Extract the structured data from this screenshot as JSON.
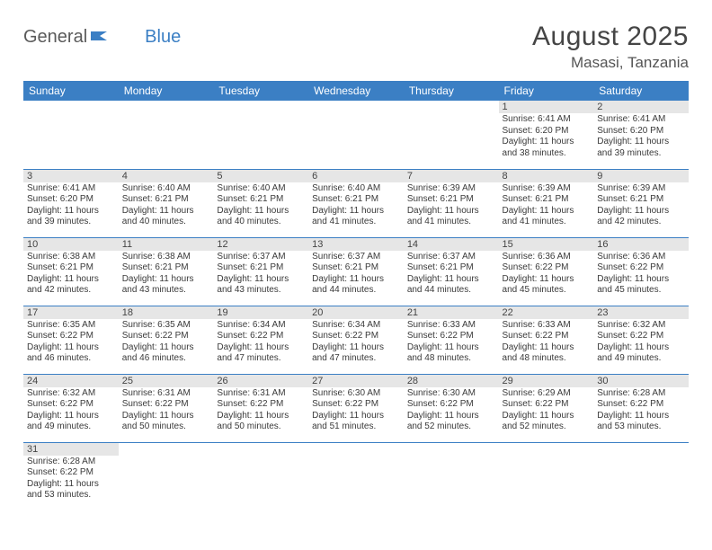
{
  "brand": {
    "general": "General",
    "blue": "Blue"
  },
  "header": {
    "month": "August 2025",
    "location": "Masasi, Tanzania"
  },
  "columns": [
    "Sunday",
    "Monday",
    "Tuesday",
    "Wednesday",
    "Thursday",
    "Friday",
    "Saturday"
  ],
  "colors": {
    "header_bg": "#3b7fc4",
    "header_text": "#ffffff",
    "daynum_bg": "#e6e6e6",
    "row_border": "#3b7fc4",
    "body_text": "#333333"
  },
  "weeks": [
    [
      {
        "day": "",
        "sunrise": "",
        "sunset": "",
        "daylight": ""
      },
      {
        "day": "",
        "sunrise": "",
        "sunset": "",
        "daylight": ""
      },
      {
        "day": "",
        "sunrise": "",
        "sunset": "",
        "daylight": ""
      },
      {
        "day": "",
        "sunrise": "",
        "sunset": "",
        "daylight": ""
      },
      {
        "day": "",
        "sunrise": "",
        "sunset": "",
        "daylight": ""
      },
      {
        "day": "1",
        "sunrise": "Sunrise: 6:41 AM",
        "sunset": "Sunset: 6:20 PM",
        "daylight": "Daylight: 11 hours and 38 minutes."
      },
      {
        "day": "2",
        "sunrise": "Sunrise: 6:41 AM",
        "sunset": "Sunset: 6:20 PM",
        "daylight": "Daylight: 11 hours and 39 minutes."
      }
    ],
    [
      {
        "day": "3",
        "sunrise": "Sunrise: 6:41 AM",
        "sunset": "Sunset: 6:20 PM",
        "daylight": "Daylight: 11 hours and 39 minutes."
      },
      {
        "day": "4",
        "sunrise": "Sunrise: 6:40 AM",
        "sunset": "Sunset: 6:21 PM",
        "daylight": "Daylight: 11 hours and 40 minutes."
      },
      {
        "day": "5",
        "sunrise": "Sunrise: 6:40 AM",
        "sunset": "Sunset: 6:21 PM",
        "daylight": "Daylight: 11 hours and 40 minutes."
      },
      {
        "day": "6",
        "sunrise": "Sunrise: 6:40 AM",
        "sunset": "Sunset: 6:21 PM",
        "daylight": "Daylight: 11 hours and 41 minutes."
      },
      {
        "day": "7",
        "sunrise": "Sunrise: 6:39 AM",
        "sunset": "Sunset: 6:21 PM",
        "daylight": "Daylight: 11 hours and 41 minutes."
      },
      {
        "day": "8",
        "sunrise": "Sunrise: 6:39 AM",
        "sunset": "Sunset: 6:21 PM",
        "daylight": "Daylight: 11 hours and 41 minutes."
      },
      {
        "day": "9",
        "sunrise": "Sunrise: 6:39 AM",
        "sunset": "Sunset: 6:21 PM",
        "daylight": "Daylight: 11 hours and 42 minutes."
      }
    ],
    [
      {
        "day": "10",
        "sunrise": "Sunrise: 6:38 AM",
        "sunset": "Sunset: 6:21 PM",
        "daylight": "Daylight: 11 hours and 42 minutes."
      },
      {
        "day": "11",
        "sunrise": "Sunrise: 6:38 AM",
        "sunset": "Sunset: 6:21 PM",
        "daylight": "Daylight: 11 hours and 43 minutes."
      },
      {
        "day": "12",
        "sunrise": "Sunrise: 6:37 AM",
        "sunset": "Sunset: 6:21 PM",
        "daylight": "Daylight: 11 hours and 43 minutes."
      },
      {
        "day": "13",
        "sunrise": "Sunrise: 6:37 AM",
        "sunset": "Sunset: 6:21 PM",
        "daylight": "Daylight: 11 hours and 44 minutes."
      },
      {
        "day": "14",
        "sunrise": "Sunrise: 6:37 AM",
        "sunset": "Sunset: 6:21 PM",
        "daylight": "Daylight: 11 hours and 44 minutes."
      },
      {
        "day": "15",
        "sunrise": "Sunrise: 6:36 AM",
        "sunset": "Sunset: 6:22 PM",
        "daylight": "Daylight: 11 hours and 45 minutes."
      },
      {
        "day": "16",
        "sunrise": "Sunrise: 6:36 AM",
        "sunset": "Sunset: 6:22 PM",
        "daylight": "Daylight: 11 hours and 45 minutes."
      }
    ],
    [
      {
        "day": "17",
        "sunrise": "Sunrise: 6:35 AM",
        "sunset": "Sunset: 6:22 PM",
        "daylight": "Daylight: 11 hours and 46 minutes."
      },
      {
        "day": "18",
        "sunrise": "Sunrise: 6:35 AM",
        "sunset": "Sunset: 6:22 PM",
        "daylight": "Daylight: 11 hours and 46 minutes."
      },
      {
        "day": "19",
        "sunrise": "Sunrise: 6:34 AM",
        "sunset": "Sunset: 6:22 PM",
        "daylight": "Daylight: 11 hours and 47 minutes."
      },
      {
        "day": "20",
        "sunrise": "Sunrise: 6:34 AM",
        "sunset": "Sunset: 6:22 PM",
        "daylight": "Daylight: 11 hours and 47 minutes."
      },
      {
        "day": "21",
        "sunrise": "Sunrise: 6:33 AM",
        "sunset": "Sunset: 6:22 PM",
        "daylight": "Daylight: 11 hours and 48 minutes."
      },
      {
        "day": "22",
        "sunrise": "Sunrise: 6:33 AM",
        "sunset": "Sunset: 6:22 PM",
        "daylight": "Daylight: 11 hours and 48 minutes."
      },
      {
        "day": "23",
        "sunrise": "Sunrise: 6:32 AM",
        "sunset": "Sunset: 6:22 PM",
        "daylight": "Daylight: 11 hours and 49 minutes."
      }
    ],
    [
      {
        "day": "24",
        "sunrise": "Sunrise: 6:32 AM",
        "sunset": "Sunset: 6:22 PM",
        "daylight": "Daylight: 11 hours and 49 minutes."
      },
      {
        "day": "25",
        "sunrise": "Sunrise: 6:31 AM",
        "sunset": "Sunset: 6:22 PM",
        "daylight": "Daylight: 11 hours and 50 minutes."
      },
      {
        "day": "26",
        "sunrise": "Sunrise: 6:31 AM",
        "sunset": "Sunset: 6:22 PM",
        "daylight": "Daylight: 11 hours and 50 minutes."
      },
      {
        "day": "27",
        "sunrise": "Sunrise: 6:30 AM",
        "sunset": "Sunset: 6:22 PM",
        "daylight": "Daylight: 11 hours and 51 minutes."
      },
      {
        "day": "28",
        "sunrise": "Sunrise: 6:30 AM",
        "sunset": "Sunset: 6:22 PM",
        "daylight": "Daylight: 11 hours and 52 minutes."
      },
      {
        "day": "29",
        "sunrise": "Sunrise: 6:29 AM",
        "sunset": "Sunset: 6:22 PM",
        "daylight": "Daylight: 11 hours and 52 minutes."
      },
      {
        "day": "30",
        "sunrise": "Sunrise: 6:28 AM",
        "sunset": "Sunset: 6:22 PM",
        "daylight": "Daylight: 11 hours and 53 minutes."
      }
    ],
    [
      {
        "day": "31",
        "sunrise": "Sunrise: 6:28 AM",
        "sunset": "Sunset: 6:22 PM",
        "daylight": "Daylight: 11 hours and 53 minutes."
      },
      {
        "day": "",
        "sunrise": "",
        "sunset": "",
        "daylight": ""
      },
      {
        "day": "",
        "sunrise": "",
        "sunset": "",
        "daylight": ""
      },
      {
        "day": "",
        "sunrise": "",
        "sunset": "",
        "daylight": ""
      },
      {
        "day": "",
        "sunrise": "",
        "sunset": "",
        "daylight": ""
      },
      {
        "day": "",
        "sunrise": "",
        "sunset": "",
        "daylight": ""
      },
      {
        "day": "",
        "sunrise": "",
        "sunset": "",
        "daylight": ""
      }
    ]
  ]
}
